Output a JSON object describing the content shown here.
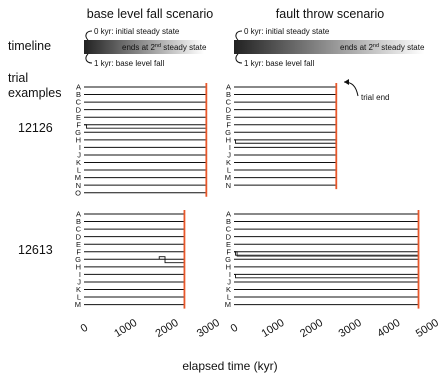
{
  "headers": {
    "base_level": "base level fall scenario",
    "fault_throw": "fault throw scenario"
  },
  "side_labels": {
    "timeline": "timeline",
    "trial_line1": "trial",
    "trial_line2": "examples"
  },
  "timeline_notes": {
    "start": "0 kyr: initial steady state",
    "end": "ends at 2",
    "end_sup": "nd",
    "end_tail": " steady state",
    "base_event": "1 kyr: base level fall",
    "fault_event": "1 kyr: base level fall"
  },
  "trial_end_label": "trial end",
  "colors": {
    "trial_end": "#e8572a",
    "row_line": "#111111",
    "gradient_start": "#222222",
    "gradient_end": "#ffffff"
  },
  "axes": {
    "base_level": {
      "min": 0,
      "max": 3000,
      "ticks": [
        "0",
        "1000",
        "2000",
        "3000"
      ],
      "tick_values": [
        0,
        1000,
        2000,
        3000
      ]
    },
    "fault_throw": {
      "min": 0,
      "max": 5000,
      "ticks": [
        "0",
        "1000",
        "2000",
        "3000",
        "4000",
        "5000"
      ],
      "tick_values": [
        0,
        1000,
        2000,
        3000,
        4000,
        5000
      ]
    },
    "xlabel": "elapsed time (kyr)"
  },
  "runs": [
    {
      "id": "12126",
      "base_level": {
        "end": 2960,
        "rows": [
          {
            "label": "A"
          },
          {
            "label": "B"
          },
          {
            "label": "C"
          },
          {
            "label": "D"
          },
          {
            "label": "E"
          },
          {
            "label": "F",
            "hook": 60
          },
          {
            "label": "G"
          },
          {
            "label": "H"
          },
          {
            "label": "I"
          },
          {
            "label": "J"
          },
          {
            "label": "K"
          },
          {
            "label": "L"
          },
          {
            "label": "M"
          },
          {
            "label": "N"
          },
          {
            "label": "O"
          }
        ]
      },
      "fault_throw": {
        "end": 2650,
        "rows": [
          {
            "label": "A"
          },
          {
            "label": "B"
          },
          {
            "label": "C"
          },
          {
            "label": "D"
          },
          {
            "label": "E"
          },
          {
            "label": "F"
          },
          {
            "label": "G"
          },
          {
            "label": "H",
            "hook": 40
          },
          {
            "label": "I"
          },
          {
            "label": "J"
          },
          {
            "label": "K"
          },
          {
            "label": "L"
          },
          {
            "label": "M"
          },
          {
            "label": "N"
          }
        ]
      }
    },
    {
      "id": "12613",
      "base_level": {
        "end": 2430,
        "rows": [
          {
            "label": "A"
          },
          {
            "label": "B"
          },
          {
            "label": "C"
          },
          {
            "label": "D"
          },
          {
            "label": "E"
          },
          {
            "label": "F"
          },
          {
            "label": "G",
            "step_from": 1820,
            "step_to": 1960
          },
          {
            "label": "H"
          },
          {
            "label": "I"
          },
          {
            "label": "J"
          },
          {
            "label": "K"
          },
          {
            "label": "L"
          },
          {
            "label": "M"
          }
        ]
      },
      "fault_throw": {
        "end": 4780,
        "rows": [
          {
            "label": "A"
          },
          {
            "label": "B"
          },
          {
            "label": "C"
          },
          {
            "label": "D"
          },
          {
            "label": "E"
          },
          {
            "label": "F",
            "hook": 40,
            "hook2": 80
          },
          {
            "label": "G"
          },
          {
            "label": "H"
          },
          {
            "label": "I",
            "hook": 40
          },
          {
            "label": "J"
          },
          {
            "label": "K"
          },
          {
            "label": "L"
          },
          {
            "label": "M"
          }
        ]
      }
    }
  ]
}
